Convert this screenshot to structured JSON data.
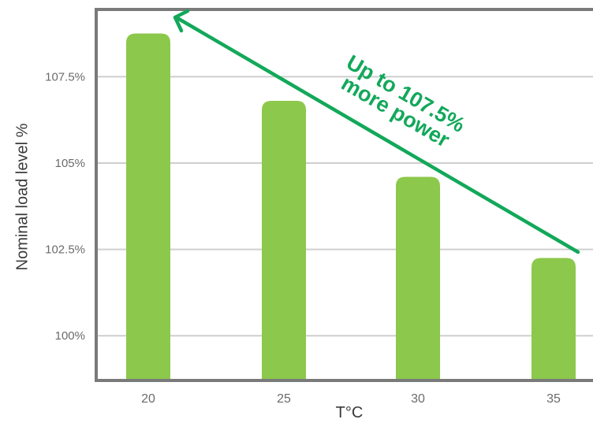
{
  "chart_data": {
    "type": "bar",
    "title": "",
    "xlabel": "T°C",
    "ylabel": "Nominal load level %",
    "categories": [
      "20",
      "25",
      "30",
      "35"
    ],
    "values": [
      108.75,
      106.8,
      104.6,
      102.25
    ],
    "ylim": [
      98.75,
      109.4
    ],
    "yticks": [
      100,
      102.5,
      105,
      107.5
    ],
    "ytick_labels": [
      "100%",
      "102.5%",
      "105%",
      "107.5%"
    ],
    "grid": true,
    "legend": "none",
    "annotation": {
      "line1": "Up to 107.5%",
      "line2": "more power",
      "arrow_direction": "up-left"
    },
    "colors": {
      "bar": "#8cc84b",
      "arrow": "#12a85a",
      "grid": "#cfcfcf",
      "axis": "#7a7a7a"
    }
  }
}
